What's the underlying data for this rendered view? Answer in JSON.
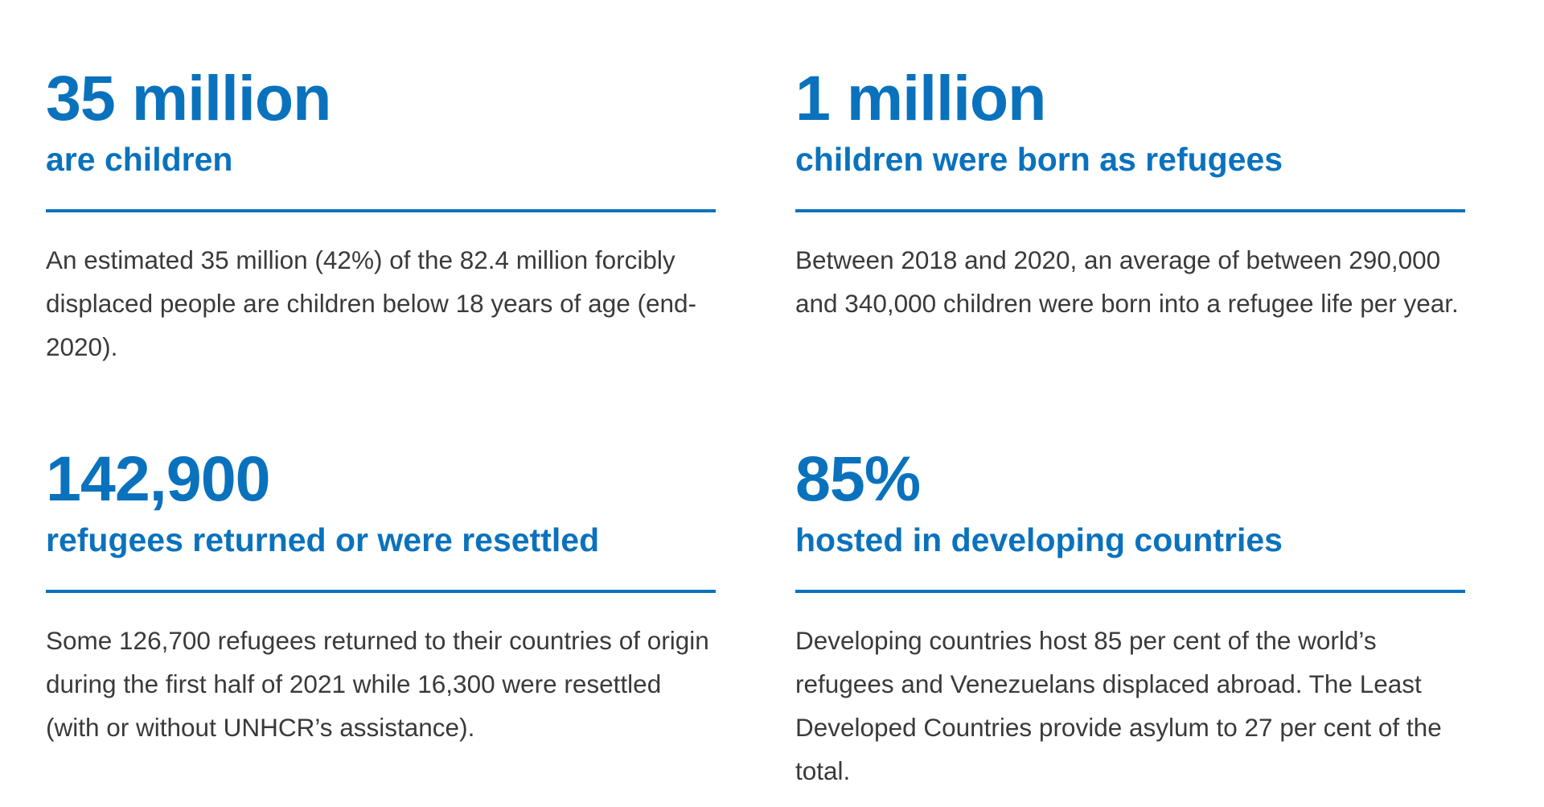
{
  "colors": {
    "accent": "#0a72bd",
    "body_text": "#3a3a3a",
    "background": "#ffffff"
  },
  "stats": [
    {
      "figure": "35 million",
      "caption": "are children",
      "description": "An estimated 35 million (42%) of the 82.4 million forcibly displaced people are children below 18 years of age (end-2020)."
    },
    {
      "figure": "1 million",
      "caption": "children were born as refugees",
      "description": "Between 2018 and 2020, an average of between 290,000 and 340,000 children were born into a refugee life per year."
    },
    {
      "figure": "142,900",
      "caption": "refugees returned or were resettled",
      "description": "Some 126,700 refugees returned to their countries of origin during the first half of 2021 while 16,300 were resettled (with or without UNHCR’s assistance)."
    },
    {
      "figure": "85%",
      "caption": "hosted in developing countries",
      "description": "Developing countries host 85 per cent of the world’s refugees and Venezuelans displaced abroad. The Least Developed Countries provide asylum to 27 per cent of the total."
    }
  ]
}
